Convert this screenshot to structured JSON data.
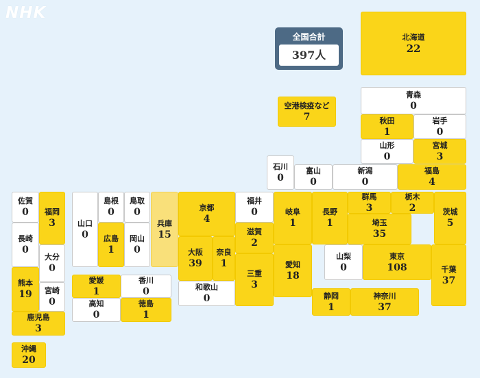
{
  "logo": "NHK",
  "total": {
    "label": "全国合計",
    "value": "397人"
  },
  "regions": [
    {
      "key": "hokkaido",
      "name": "北海道",
      "count": 22,
      "fill": "yellow"
    },
    {
      "key": "airport",
      "name": "空港検疫など",
      "count": 7,
      "fill": "yellow"
    },
    {
      "key": "aomori",
      "name": "青森",
      "count": 0,
      "fill": "white"
    },
    {
      "key": "akita",
      "name": "秋田",
      "count": 1,
      "fill": "yellow"
    },
    {
      "key": "iwate",
      "name": "岩手",
      "count": 0,
      "fill": "white"
    },
    {
      "key": "yamagata",
      "name": "山形",
      "count": 0,
      "fill": "white"
    },
    {
      "key": "miyagi",
      "name": "宮城",
      "count": 3,
      "fill": "yellow"
    },
    {
      "key": "ishikawa",
      "name": "石川",
      "count": 0,
      "fill": "white"
    },
    {
      "key": "toyama",
      "name": "富山",
      "count": 0,
      "fill": "white"
    },
    {
      "key": "niigata",
      "name": "新潟",
      "count": 0,
      "fill": "white"
    },
    {
      "key": "fukushima",
      "name": "福島",
      "count": 4,
      "fill": "yellow"
    },
    {
      "key": "saga",
      "name": "佐賀",
      "count": 0,
      "fill": "white"
    },
    {
      "key": "fukuoka",
      "name": "福岡",
      "count": 3,
      "fill": "yellow"
    },
    {
      "key": "yamaguchi",
      "name": "山口",
      "count": 0,
      "fill": "white"
    },
    {
      "key": "shimane",
      "name": "島根",
      "count": 0,
      "fill": "white"
    },
    {
      "key": "tottori",
      "name": "鳥取",
      "count": 0,
      "fill": "white"
    },
    {
      "key": "hyogo",
      "name": "兵庫",
      "count": 15,
      "fill": "light"
    },
    {
      "key": "kyoto",
      "name": "京都",
      "count": 4,
      "fill": "yellow"
    },
    {
      "key": "fukui",
      "name": "福井",
      "count": 0,
      "fill": "white"
    },
    {
      "key": "gifu",
      "name": "岐阜",
      "count": 1,
      "fill": "yellow"
    },
    {
      "key": "nagano",
      "name": "長野",
      "count": 1,
      "fill": "yellow"
    },
    {
      "key": "gunma",
      "name": "群馬",
      "count": 3,
      "fill": "yellow"
    },
    {
      "key": "tochigi",
      "name": "栃木",
      "count": 2,
      "fill": "yellow"
    },
    {
      "key": "ibaraki",
      "name": "茨城",
      "count": 5,
      "fill": "yellow"
    },
    {
      "key": "nagasaki",
      "name": "長崎",
      "count": 0,
      "fill": "white"
    },
    {
      "key": "hiroshima",
      "name": "広島",
      "count": 1,
      "fill": "yellow"
    },
    {
      "key": "okayama",
      "name": "岡山",
      "count": 0,
      "fill": "white"
    },
    {
      "key": "shiga",
      "name": "滋賀",
      "count": 2,
      "fill": "yellow"
    },
    {
      "key": "saitama",
      "name": "埼玉",
      "count": 35,
      "fill": "yellow"
    },
    {
      "key": "oita",
      "name": "大分",
      "count": 0,
      "fill": "white"
    },
    {
      "key": "osaka",
      "name": "大阪",
      "count": 39,
      "fill": "yellow"
    },
    {
      "key": "nara",
      "name": "奈良",
      "count": 1,
      "fill": "yellow"
    },
    {
      "key": "mie",
      "name": "三重",
      "count": 3,
      "fill": "yellow"
    },
    {
      "key": "aichi",
      "name": "愛知",
      "count": 18,
      "fill": "yellow"
    },
    {
      "key": "yamanashi",
      "name": "山梨",
      "count": 0,
      "fill": "white"
    },
    {
      "key": "tokyo",
      "name": "東京",
      "count": 108,
      "fill": "yellow"
    },
    {
      "key": "chiba",
      "name": "千葉",
      "count": 37,
      "fill": "yellow"
    },
    {
      "key": "kumamoto",
      "name": "熊本",
      "count": 19,
      "fill": "yellow"
    },
    {
      "key": "miyazaki",
      "name": "宮崎",
      "count": 0,
      "fill": "white"
    },
    {
      "key": "ehime",
      "name": "愛媛",
      "count": 1,
      "fill": "yellow"
    },
    {
      "key": "kagawa",
      "name": "香川",
      "count": 0,
      "fill": "white"
    },
    {
      "key": "wakayama",
      "name": "和歌山",
      "count": 0,
      "fill": "white"
    },
    {
      "key": "shizuoka",
      "name": "静岡",
      "count": 1,
      "fill": "yellow"
    },
    {
      "key": "kanagawa",
      "name": "神奈川",
      "count": 37,
      "fill": "yellow"
    },
    {
      "key": "kochi",
      "name": "高知",
      "count": 0,
      "fill": "white"
    },
    {
      "key": "tokushima",
      "name": "徳島",
      "count": 1,
      "fill": "yellow"
    },
    {
      "key": "kagoshima",
      "name": "鹿児島",
      "count": 3,
      "fill": "yellow"
    },
    {
      "key": "okinawa",
      "name": "沖縄",
      "count": 20,
      "fill": "yellow"
    }
  ]
}
